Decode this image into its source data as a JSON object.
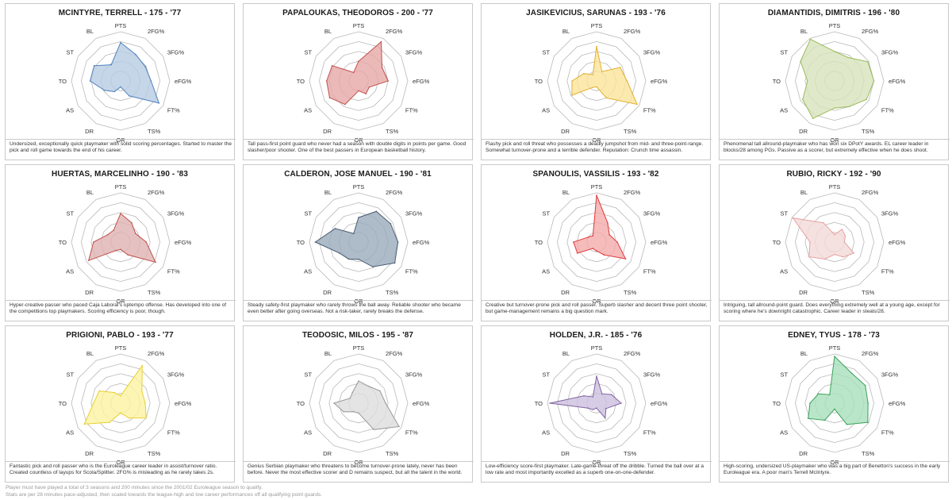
{
  "chart_data": {
    "type": "radar",
    "axes": [
      "PTS",
      "2FG%",
      "3FG%",
      "eFG%",
      "FT%",
      "TS%",
      "OR",
      "DR",
      "AS",
      "TO",
      "ST",
      "BL"
    ],
    "rlim": [
      0,
      1
    ],
    "grid": "concentric dodecagons",
    "players": [
      {
        "title": "MCINTYRE, TERRELL - 175 - '77",
        "color": "#4f81bd",
        "fill": "#b8cce4",
        "values": [
          0.78,
          0.62,
          0.58,
          0.62,
          0.9,
          0.35,
          0.12,
          0.25,
          0.38,
          0.62,
          0.62,
          0.38
        ],
        "description": "Undersized, exceptionally quick playmaker with solid scoring percentages. Started to master the pick and roll game towards the end of his career."
      },
      {
        "title": "PAPALOUKAS, THEODOROS - 200 - '77",
        "color": "#c0504d",
        "fill": "#e6a8a6",
        "values": [
          0.4,
          0.92,
          0.55,
          0.6,
          0.25,
          0.3,
          0.2,
          0.55,
          0.68,
          0.65,
          0.62,
          0.2
        ],
        "description": "Tall pass-first point guard who never had a season with double digits in points per game. Good slasher/poor shooter. One of the best passers in European basketball history."
      },
      {
        "title": "JASIKEVICIUS, SARUNAS - 193 - '76",
        "color": "#e0b030",
        "fill": "#fbe39a",
        "values": [
          0.7,
          0.22,
          0.55,
          0.62,
          0.95,
          0.4,
          0.12,
          0.15,
          0.58,
          0.5,
          0.3,
          0.15
        ],
        "description": "Flashy pick and roll threat who possesses a deadly jumpshot from mid- and three-point-range. Somewhat turnover-prone and a terrible defender. Reputation: Crunch time assassin."
      },
      {
        "title": "DIAMANTIDIS, DIMITRIS - 196 - '80",
        "color": "#9bbb59",
        "fill": "#d7e4bd",
        "values": [
          0.6,
          0.55,
          0.78,
          0.8,
          0.75,
          0.6,
          0.55,
          0.88,
          0.75,
          0.55,
          0.8,
          0.98
        ],
        "description": "Phenomenal tall allround-playmaker who has won six DPotY awards. EL career leader in blocks/28 among PGs. Passive as a scorer, but extremely effective when he does shoot."
      },
      {
        "title": "HUERTAS, MARCELINHO - 190 - '83",
        "color": "#c0504d",
        "fill": "#dfb3b2",
        "values": [
          0.58,
          0.45,
          0.35,
          0.52,
          0.82,
          0.3,
          0.15,
          0.2,
          0.75,
          0.55,
          0.3,
          0.28
        ],
        "description": "Hyper-creative passer who paced Caja Laboral's uptempo offense. Has developed into one of the competitions top playmakers. Scoring efficiency is poor, though."
      },
      {
        "title": "CALDERON, JOSE MANUEL - 190 - '81",
        "color": "#4a5a70",
        "fill": "#9aabbc",
        "values": [
          0.5,
          0.72,
          0.75,
          0.8,
          0.85,
          0.58,
          0.35,
          0.4,
          0.45,
          0.88,
          0.55,
          0.2
        ],
        "description": "Steady safety-first playmaker who rarely throws the ball away. Reliable shooter who became even better after going overseas. Not a risk-taker, rarely breaks the defense."
      },
      {
        "title": "SPANOULIS, VASSILIS - 193 - '82",
        "color": "#e0393b",
        "fill": "#f4aaaa",
        "values": [
          0.95,
          0.45,
          0.3,
          0.42,
          0.68,
          0.3,
          0.18,
          0.15,
          0.45,
          0.47,
          0.2,
          0.15
        ],
        "description": "Creative but turnover-prone pick and roll passer. Superb slasher and decent three point shooter, but game-management remains a big question mark."
      },
      {
        "title": "RUBIO, RICKY - 192 - '90",
        "color": "#e8a0a0",
        "fill": "#f3d9d8",
        "values": [
          0.15,
          0.3,
          0.25,
          0.2,
          0.45,
          0.35,
          0.25,
          0.4,
          0.6,
          0.5,
          0.98,
          0.45
        ],
        "description": "Intriguing, tall allround-point guard. Does everything extremely well at a young age, except for scoring where he's downright catastrophic. Career leader in steals/28."
      },
      {
        "title": "PRIGIONI, PABLO - 193 - '77",
        "color": "#e8d030",
        "fill": "#fcf2a0",
        "values": [
          0.15,
          0.88,
          0.5,
          0.5,
          0.6,
          0.35,
          0.2,
          0.45,
          0.85,
          0.55,
          0.5,
          0.25
        ],
        "description": "Fantastic pick and roll passer who is the Euroleague career leader in assist/turnover ratio. Created countless of layups for Scola/Splitter. 2FG% is misleading as he rarely takes 2s."
      },
      {
        "title": "TEODOSIC, MILOS - 195 - '87",
        "color": "#999999",
        "fill": "#dddddd",
        "values": [
          0.45,
          0.4,
          0.5,
          0.55,
          0.95,
          0.62,
          0.2,
          0.2,
          0.35,
          0.5,
          0.2,
          0.25
        ],
        "description": "Genius Serbian playmaker who threatens to become turnover-prone lately, never has been before. Never the most effective scorer and D remains suspect, but all the talent in the world."
      },
      {
        "title": "HOLDEN, J.R. - 185 - '76",
        "color": "#8064a2",
        "fill": "#cdbfe0",
        "values": [
          0.55,
          0.22,
          0.35,
          0.5,
          0.22,
          0.35,
          0.1,
          0.15,
          0.2,
          0.95,
          0.3,
          0.15
        ],
        "description": "Low-efficiency score-first playmaker. Late-game-threat off the dribble. Turned the ball over at a low rate and most importantly excelled as a superb one-on-one-defender."
      },
      {
        "title": "EDNEY, TYUS - 178 - '73",
        "color": "#3aa05a",
        "fill": "#a8e0ba",
        "values": [
          0.95,
          0.7,
          0.72,
          0.68,
          0.78,
          0.5,
          0.12,
          0.4,
          0.62,
          0.5,
          0.38,
          0.2
        ],
        "description": "High-scoring, undersized US-playmaker who was a big part of Benetton's success in the early Euroleague era. A poor man's Terrell McIntyre."
      }
    ]
  },
  "footer": {
    "line1": "Player must have played a total of 3 seasons and 200 minutes since the 2001/02 Euroleague season to qualify.",
    "line2": "Stats are per 28 minutes pace-adjusted, then scaled towards the league-high and low career performances off all qualifying point guards."
  }
}
